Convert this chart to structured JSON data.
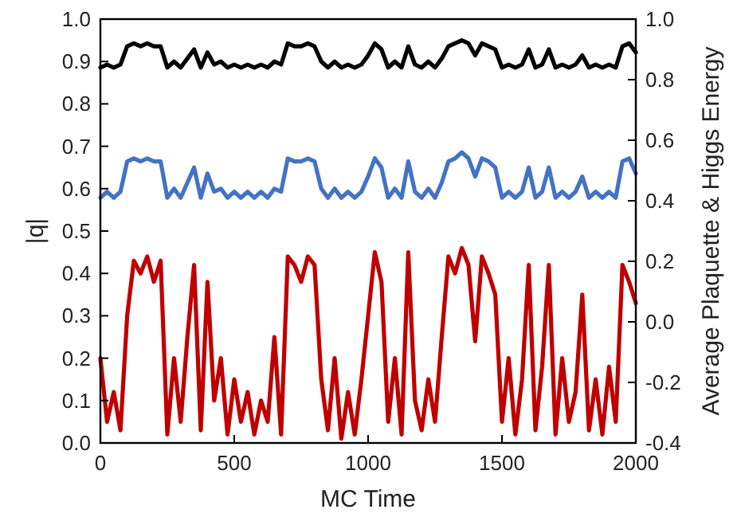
{
  "chart_data": {
    "type": "line",
    "xlabel": "MC Time",
    "ylabel": "|q|",
    "y2label": "Average Plaquette & Higgs Energy",
    "x": [
      0,
      25,
      50,
      75,
      100,
      125,
      150,
      175,
      200,
      225,
      250,
      275,
      300,
      325,
      350,
      375,
      400,
      425,
      450,
      475,
      500,
      525,
      550,
      575,
      600,
      625,
      650,
      675,
      700,
      725,
      750,
      775,
      800,
      825,
      850,
      875,
      900,
      925,
      950,
      975,
      1000,
      1025,
      1050,
      1075,
      1100,
      1125,
      1150,
      1175,
      1200,
      1225,
      1250,
      1275,
      1300,
      1325,
      1350,
      1375,
      1400,
      1425,
      1450,
      1475,
      1500,
      1525,
      1550,
      1575,
      1600,
      1625,
      1650,
      1675,
      1700,
      1725,
      1750,
      1775,
      1800,
      1825,
      1850,
      1875,
      1900,
      1925,
      1950,
      1975,
      2000
    ],
    "series": [
      {
        "color": "#000000",
        "axis": "y2",
        "values": [
          0.84,
          0.85,
          0.84,
          0.85,
          0.91,
          0.92,
          0.91,
          0.92,
          0.91,
          0.91,
          0.84,
          0.86,
          0.84,
          0.87,
          0.9,
          0.84,
          0.89,
          0.85,
          0.86,
          0.84,
          0.85,
          0.84,
          0.85,
          0.84,
          0.85,
          0.84,
          0.86,
          0.85,
          0.92,
          0.91,
          0.91,
          0.92,
          0.91,
          0.86,
          0.84,
          0.86,
          0.84,
          0.85,
          0.84,
          0.85,
          0.88,
          0.92,
          0.9,
          0.84,
          0.86,
          0.84,
          0.91,
          0.85,
          0.84,
          0.86,
          0.84,
          0.87,
          0.91,
          0.92,
          0.93,
          0.92,
          0.88,
          0.92,
          0.91,
          0.9,
          0.84,
          0.85,
          0.84,
          0.85,
          0.9,
          0.84,
          0.85,
          0.9,
          0.84,
          0.85,
          0.84,
          0.85,
          0.88,
          0.84,
          0.85,
          0.84,
          0.85,
          0.84,
          0.91,
          0.92,
          0.89
        ]
      },
      {
        "color": "#4472c4",
        "axis": "y2",
        "values": [
          0.41,
          0.43,
          0.41,
          0.43,
          0.53,
          0.54,
          0.53,
          0.54,
          0.53,
          0.53,
          0.41,
          0.44,
          0.41,
          0.46,
          0.51,
          0.41,
          0.49,
          0.43,
          0.44,
          0.41,
          0.43,
          0.41,
          0.43,
          0.41,
          0.43,
          0.41,
          0.44,
          0.43,
          0.54,
          0.53,
          0.53,
          0.54,
          0.53,
          0.44,
          0.41,
          0.44,
          0.41,
          0.43,
          0.41,
          0.43,
          0.48,
          0.54,
          0.51,
          0.41,
          0.44,
          0.41,
          0.53,
          0.43,
          0.41,
          0.44,
          0.41,
          0.46,
          0.53,
          0.54,
          0.56,
          0.54,
          0.48,
          0.54,
          0.53,
          0.51,
          0.41,
          0.43,
          0.41,
          0.43,
          0.51,
          0.41,
          0.43,
          0.51,
          0.41,
          0.43,
          0.41,
          0.43,
          0.48,
          0.41,
          0.43,
          0.41,
          0.43,
          0.41,
          0.53,
          0.54,
          0.49
        ]
      },
      {
        "color": "#c00000",
        "values": [
          0.2,
          0.05,
          0.12,
          0.03,
          0.3,
          0.43,
          0.4,
          0.44,
          0.38,
          0.43,
          0.02,
          0.2,
          0.05,
          0.25,
          0.42,
          0.03,
          0.38,
          0.1,
          0.2,
          0.02,
          0.15,
          0.05,
          0.12,
          0.02,
          0.1,
          0.05,
          0.25,
          0.02,
          0.44,
          0.42,
          0.38,
          0.44,
          0.42,
          0.15,
          0.03,
          0.2,
          0.01,
          0.12,
          0.02,
          0.15,
          0.3,
          0.45,
          0.38,
          0.05,
          0.2,
          0.02,
          0.45,
          0.1,
          0.03,
          0.15,
          0.05,
          0.25,
          0.44,
          0.4,
          0.46,
          0.42,
          0.24,
          0.44,
          0.4,
          0.35,
          0.05,
          0.2,
          0.02,
          0.15,
          0.42,
          0.03,
          0.18,
          0.42,
          0.02,
          0.2,
          0.05,
          0.12,
          0.35,
          0.03,
          0.15,
          0.02,
          0.18,
          0.05,
          0.42,
          0.38,
          0.33
        ]
      }
    ],
    "xlim": [
      0,
      2000
    ],
    "xticks": [
      0,
      500,
      1000,
      1500,
      2000
    ],
    "ylim": [
      0,
      1
    ],
    "yticks": [
      {
        "value": 0,
        "label": "0.0"
      },
      {
        "value": 0.1,
        "label": "0.1"
      },
      {
        "value": 0.2,
        "label": "0.2"
      },
      {
        "value": 0.3,
        "label": "0.3"
      },
      {
        "value": 0.4,
        "label": "0.4"
      },
      {
        "value": 0.5,
        "label": "0.5"
      },
      {
        "value": 0.6,
        "label": "0.6"
      },
      {
        "value": 0.7,
        "label": "0.7"
      },
      {
        "value": 0.8,
        "label": "0.8"
      },
      {
        "value": 0.9,
        "label": "0.9"
      },
      {
        "value": 1,
        "label": "1.0"
      }
    ],
    "y2lim": [
      -0.4,
      1
    ],
    "y2ticks": [
      -0.4,
      -0.2,
      {
        "value": 0,
        "label": "0.0"
      },
      0.2,
      0.4,
      0.6,
      0.8,
      {
        "value": 1,
        "label": "1.0"
      }
    ],
    "grid": false,
    "marker": "none",
    "line_style": "solid"
  }
}
